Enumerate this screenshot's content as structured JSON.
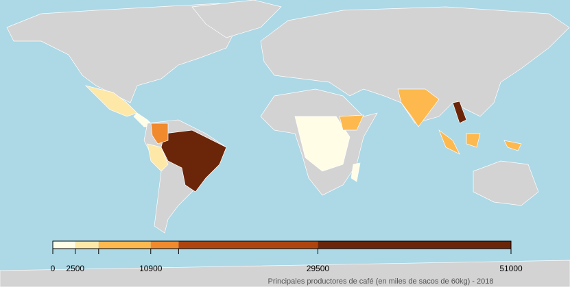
{
  "legend": {
    "xlim": [
      0,
      51000
    ],
    "breaks": [
      0,
      2500,
      5100,
      10900,
      14000,
      29500,
      51000
    ],
    "colors": [
      "#fffde6",
      "#fee8a8",
      "#fdb94d",
      "#f08a2d",
      "#b0440e",
      "#6b2508"
    ],
    "xticks": [
      0,
      2500,
      10900,
      29500,
      51000
    ]
  },
  "caption": "Principales productores de café (en miles de sacos de 60kg)  - 2018"
}
